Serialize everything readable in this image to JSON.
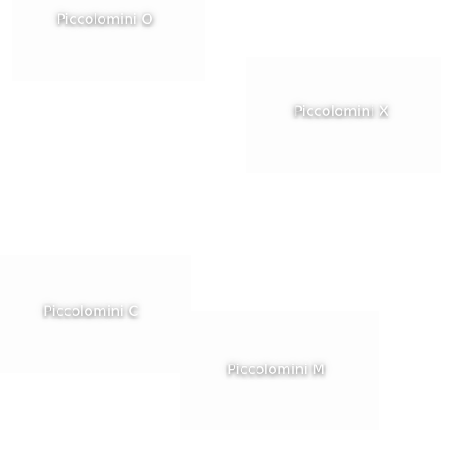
{
  "tiles": [
    {
      "label": "Piccolomini O"
    },
    {
      "label": "Piccolomini X"
    },
    {
      "label": "Piccolomini C"
    },
    {
      "label": "Piccolomini M"
    }
  ],
  "colors": {
    "background": "#ffffff",
    "tile": "#fdfdfd",
    "label": "#ffffff"
  }
}
